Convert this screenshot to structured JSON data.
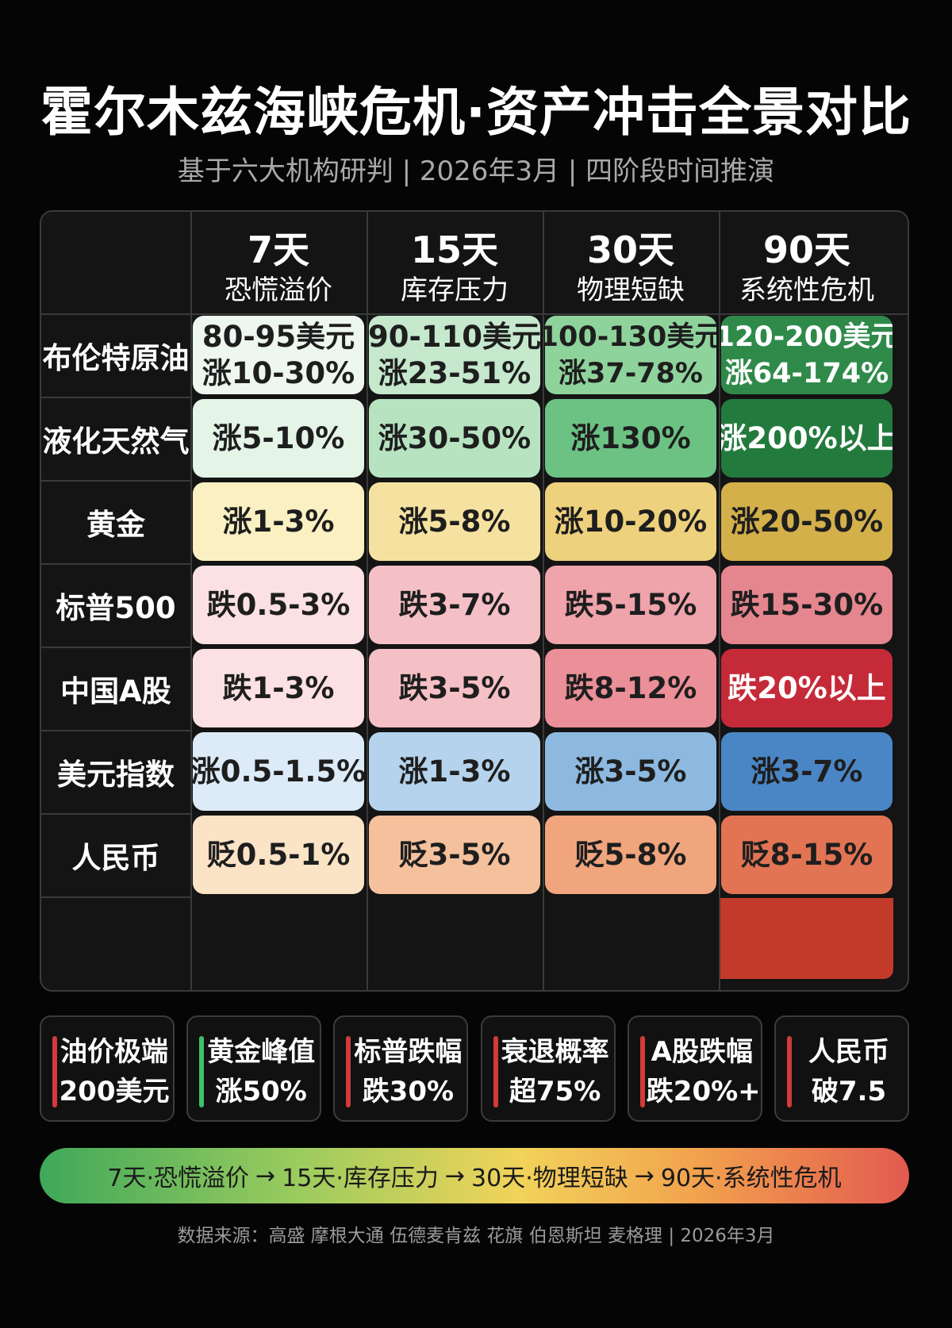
{
  "title": "霍尔木兹海峡危机·资产冲击全景对比",
  "subtitle": "基于六大机构研判 | 2026年3月 | 四阶段时间推演",
  "chart_data": {
    "type": "table",
    "columns": [
      {
        "day": "7天",
        "phase": "恐慌溢价"
      },
      {
        "day": "15天",
        "phase": "库存压力"
      },
      {
        "day": "30天",
        "phase": "物理短缺"
      },
      {
        "day": "90天",
        "phase": "系统性危机"
      }
    ],
    "rows": [
      {
        "label": "布伦特原油",
        "cells": [
          {
            "line1": "80-95美元",
            "line2": "涨10-30%",
            "color": "#eef7ef"
          },
          {
            "line1": "90-110美元",
            "line2": "涨23-51%",
            "color": "#c6e8cd"
          },
          {
            "line1": "100-130美元",
            "line2": "涨37-78%",
            "color": "#8fd39c"
          },
          {
            "line1": "120-200美元",
            "line2": "涨64-174%",
            "color": "#2f8a4a"
          }
        ]
      },
      {
        "label": "液化天然气",
        "cells": [
          {
            "line1": "涨5-10%",
            "line2": "",
            "color": "#e4f4e7"
          },
          {
            "line1": "涨30-50%",
            "line2": "",
            "color": "#b7e3c0"
          },
          {
            "line1": "涨130%",
            "line2": "",
            "color": "#6cc283"
          },
          {
            "line1": "涨200%以上",
            "line2": "",
            "color": "#237a3d"
          }
        ]
      },
      {
        "label": "黄金",
        "cells": [
          {
            "line1": "涨1-3%",
            "line2": "",
            "color": "#faf0c2"
          },
          {
            "line1": "涨5-8%",
            "line2": "",
            "color": "#f6e2a0"
          },
          {
            "line1": "涨10-20%",
            "line2": "",
            "color": "#eed17c"
          },
          {
            "line1": "涨20-50%",
            "line2": "",
            "color": "#d4b04a"
          }
        ]
      },
      {
        "label": "标普500",
        "cells": [
          {
            "line1": "跌0.5-3%",
            "line2": "",
            "color": "#fbe1e3"
          },
          {
            "line1": "跌3-7%",
            "line2": "",
            "color": "#f5c0c5"
          },
          {
            "line1": "跌5-15%",
            "line2": "",
            "color": "#efa3aa"
          },
          {
            "line1": "跌15-30%",
            "line2": "",
            "color": "#e5868f"
          }
        ]
      },
      {
        "label": "中国A股",
        "cells": [
          {
            "line1": "跌1-3%",
            "line2": "",
            "color": "#fbe1e3"
          },
          {
            "line1": "跌3-5%",
            "line2": "",
            "color": "#f5c0c5"
          },
          {
            "line1": "跌8-12%",
            "line2": "",
            "color": "#eb8f98"
          },
          {
            "line1": "跌20%以上",
            "line2": "",
            "color": "#c52a38"
          }
        ]
      },
      {
        "label": "美元指数",
        "cells": [
          {
            "line1": "涨0.5-1.5%",
            "line2": "",
            "color": "#dcebf7"
          },
          {
            "line1": "涨1-3%",
            "line2": "",
            "color": "#b5d3ec"
          },
          {
            "line1": "涨3-5%",
            "line2": "",
            "color": "#8db9e0"
          },
          {
            "line1": "涨3-7%",
            "line2": "",
            "color": "#4a86c5"
          }
        ]
      },
      {
        "label": "人民币",
        "cells": [
          {
            "line1": "贬0.5-1%",
            "line2": "",
            "color": "#fbe3c6"
          },
          {
            "line1": "贬3-5%",
            "line2": "",
            "color": "#f5c19d"
          },
          {
            "line1": "贬5-8%",
            "line2": "",
            "color": "#f0a57d"
          },
          {
            "line1": "贬8-15%",
            "line2": "",
            "color": "#e27453"
          }
        ]
      }
    ],
    "extra_row_last_color": "#c43a2a"
  },
  "stats": [
    {
      "label": "油价极端",
      "value": "200美元",
      "bar_color": "#d33a3a"
    },
    {
      "label": "黄金峰值",
      "value": "涨50%",
      "bar_color": "#3fbf6a"
    },
    {
      "label": "标普跌幅",
      "value": "跌30%",
      "bar_color": "#d33a3a"
    },
    {
      "label": "衰退概率",
      "value": "超75%",
      "bar_color": "#d33a3a"
    },
    {
      "label": "A股跌幅",
      "value": "跌20%+",
      "bar_color": "#d33a3a"
    },
    {
      "label": "人民币",
      "value": "破7.5",
      "bar_color": "#d33a3a"
    }
  ],
  "timeline": {
    "step1": "7天·恐慌溢价",
    "step2": "15天·库存压力",
    "step3": "30天·物理短缺",
    "step4": "90天·系统性危机",
    "arrow": "→"
  },
  "source": "数据来源：高盛 摩根大通 伍德麦肯兹 花旗 伯恩斯坦 麦格理 | 2026年3月"
}
